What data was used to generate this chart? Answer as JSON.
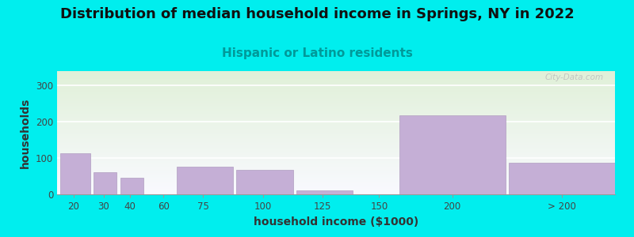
{
  "title": "Distribution of median household income in Springs, NY in 2022",
  "subtitle": "Hispanic or Latino residents",
  "xlabel": "household income ($1000)",
  "ylabel": "households",
  "background_color": "#00EEEE",
  "plot_bg_color_top": "#dff0d8",
  "plot_bg_color_bottom": "#f8f8ff",
  "bar_color": "#c5afd6",
  "bar_edgecolor": "#b09dc0",
  "categories": [
    "20",
    "30",
    "40",
    "60",
    "75",
    "100",
    "125",
    "150",
    "200",
    "> 200"
  ],
  "values": [
    113,
    62,
    45,
    0,
    76,
    68,
    10,
    0,
    218,
    88
  ],
  "bar_lefts": [
    1,
    11,
    19,
    28,
    36,
    54,
    72,
    90,
    103,
    136
  ],
  "bar_widths": [
    9,
    7,
    7,
    1,
    17,
    17,
    17,
    1,
    32,
    32
  ],
  "xtick_pos": [
    5,
    14,
    22,
    32,
    44,
    62,
    80,
    97,
    119,
    152
  ],
  "xlim": [
    0,
    168
  ],
  "ylim": [
    0,
    340
  ],
  "yticks": [
    0,
    100,
    200,
    300
  ],
  "title_fontsize": 13,
  "subtitle_fontsize": 11,
  "subtitle_color": "#009999",
  "axis_label_fontsize": 10,
  "tick_fontsize": 8.5,
  "title_color": "#111111",
  "watermark": "City-Data.com"
}
